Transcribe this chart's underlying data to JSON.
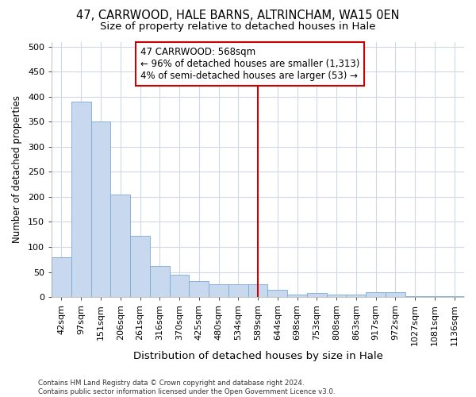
{
  "title1": "47, CARRWOOD, HALE BARNS, ALTRINCHAM, WA15 0EN",
  "title2": "Size of property relative to detached houses in Hale",
  "xlabel": "Distribution of detached houses by size in Hale",
  "ylabel": "Number of detached properties",
  "bar_labels": [
    "42sqm",
    "97sqm",
    "151sqm",
    "206sqm",
    "261sqm",
    "316sqm",
    "370sqm",
    "425sqm",
    "480sqm",
    "534sqm",
    "589sqm",
    "644sqm",
    "698sqm",
    "753sqm",
    "808sqm",
    "863sqm",
    "917sqm",
    "972sqm",
    "1027sqm",
    "1081sqm",
    "1136sqm"
  ],
  "bar_values": [
    80,
    390,
    350,
    205,
    122,
    62,
    44,
    31,
    25,
    25,
    25,
    15,
    5,
    8,
    5,
    5,
    10,
    10,
    2,
    2,
    1
  ],
  "bar_color": "#c8d8ee",
  "bar_edge_color": "#7aaad0",
  "vline_x": 10.0,
  "vline_color": "#cc0000",
  "annotation_line1": "47 CARRWOOD: 568sqm",
  "annotation_line2": "← 96% of detached houses are smaller (1,313)",
  "annotation_line3": "4% of semi-detached houses are larger (53) →",
  "annotation_box_color": "#cc0000",
  "ylim": [
    0,
    510
  ],
  "yticks": [
    0,
    50,
    100,
    150,
    200,
    250,
    300,
    350,
    400,
    450,
    500
  ],
  "footer_text": "Contains HM Land Registry data © Crown copyright and database right 2024.\nContains public sector information licensed under the Open Government Licence v3.0.",
  "bg_color": "#ffffff",
  "grid_color": "#d0d8e8",
  "title1_fontsize": 10.5,
  "title2_fontsize": 9.5,
  "xlabel_fontsize": 9.5,
  "ylabel_fontsize": 8.5,
  "tick_fontsize": 8,
  "annotation_fontsize": 8.5
}
